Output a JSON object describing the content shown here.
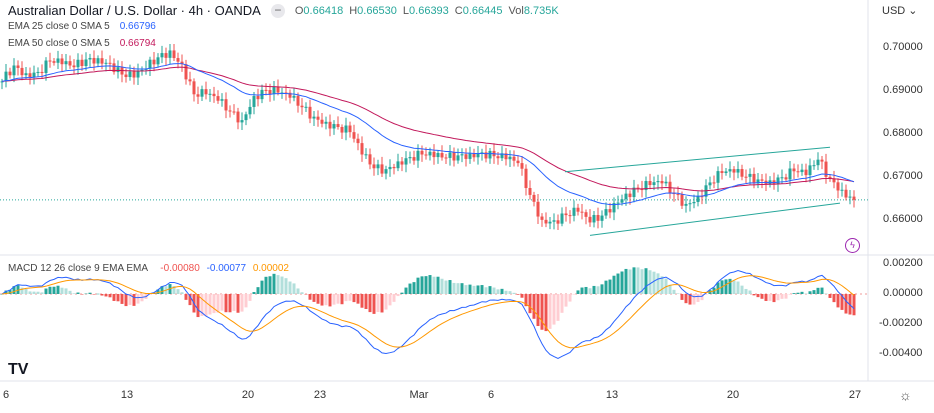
{
  "header": {
    "symbol_title": "Australian Dollar / U.S. Dollar · 4h · OANDA",
    "ohlc": {
      "o_label": "O",
      "o": "0.66418",
      "h_label": "H",
      "h": "0.66530",
      "l_label": "L",
      "l": "0.66393",
      "c_label": "C",
      "c": "0.66445",
      "vol_label": "Vol",
      "vol": "8.735K"
    }
  },
  "indicators": [
    {
      "label": "EMA 25 close 0 SMA 5",
      "value": "0.66796",
      "color": "#2962ff"
    },
    {
      "label": "EMA 50 close 0 SMA 5",
      "value": "0.66794",
      "color": "#c2185b"
    }
  ],
  "macd": {
    "label": "MACD 12 26 close 9 EMA EMA",
    "values": [
      "-0.00080",
      "-0.00077",
      "0.00002"
    ],
    "value_colors": [
      "#ef5350",
      "#2962ff",
      "#ff9800"
    ]
  },
  "currency_menu": "USD",
  "price_axis": [
    "0.70000",
    "0.69000",
    "0.68000",
    "0.67000",
    "0.66000"
  ],
  "macd_axis": [
    "0.00200",
    "0.00000",
    "-0.00200",
    "-0.00400"
  ],
  "x_axis": [
    "6",
    "13",
    "20",
    "23",
    "Mar",
    "6",
    "13",
    "20",
    "27"
  ],
  "chart_data": {
    "type": "candlestick",
    "interval": "4h",
    "close_path_every_3_bars": [
      0.692,
      0.6957,
      0.6939,
      0.6942,
      0.6967,
      0.696,
      0.6953,
      0.6971,
      0.6974,
      0.6962,
      0.6936,
      0.6929,
      0.695,
      0.6976,
      0.6992,
      0.696,
      0.689,
      0.689,
      0.6875,
      0.685,
      0.683,
      0.6886,
      0.69,
      0.6894,
      0.6882,
      0.686,
      0.6838,
      0.6826,
      0.6814,
      0.6802,
      0.675,
      0.6718,
      0.6716,
      0.6734,
      0.6744,
      0.675,
      0.6744,
      0.6742,
      0.6748,
      0.6752,
      0.6755,
      0.6746,
      0.6739,
      0.673,
      0.6656,
      0.6598,
      0.6597,
      0.6609,
      0.6617,
      0.6592,
      0.6608,
      0.6637,
      0.6659,
      0.6671,
      0.6679,
      0.6683,
      0.6658,
      0.6635,
      0.6653,
      0.6685,
      0.6707,
      0.6708,
      0.6698,
      0.6692,
      0.669,
      0.6697,
      0.6711,
      0.6702,
      0.6738,
      0.6694,
      0.6668,
      0.66445
    ],
    "price_range": [
      0.654,
      0.705
    ],
    "macd_range": [
      -0.0055,
      0.003
    ],
    "channel": {
      "upper": [
        0.671,
        0.6767
      ],
      "lower": [
        0.6562,
        0.6637
      ],
      "color": "#26a69a"
    },
    "last_price": 0.66445,
    "colors": {
      "up": "#26a69a",
      "down": "#ef5350",
      "ema25": "#2962ff",
      "ema50": "#c2185b",
      "macd": "#2962ff",
      "signal": "#ff9800"
    }
  }
}
